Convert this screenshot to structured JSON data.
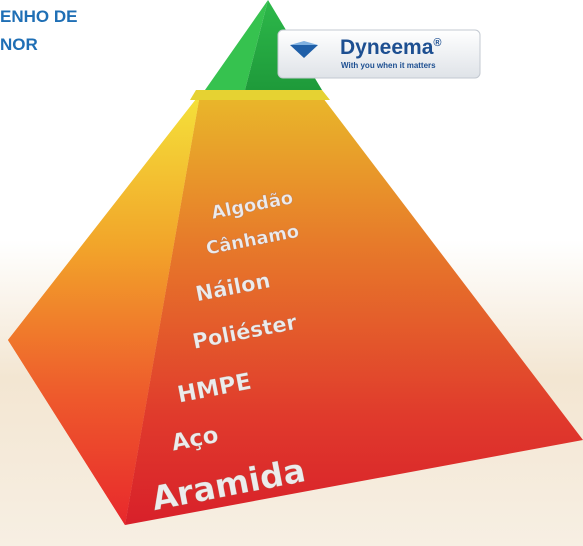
{
  "header": {
    "lines": [
      "ENHO DE",
      "NOR"
    ]
  },
  "logo": {
    "name": "Dyneema",
    "mark": "®",
    "tagline": "With you when it matters"
  },
  "pyramid": {
    "levels": [
      "Algodão",
      "Cânhamo",
      "Náilon",
      "Poliéster",
      "HMPE",
      "Aço",
      "Aramida"
    ]
  }
}
